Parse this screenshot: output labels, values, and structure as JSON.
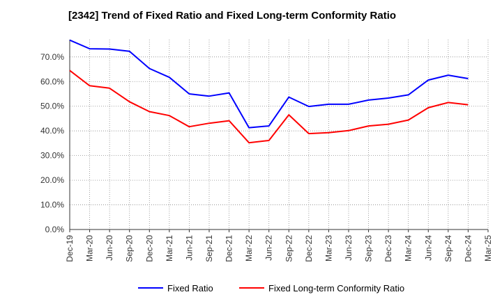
{
  "chart_data": {
    "type": "line",
    "title": "[2342]  Trend of Fixed Ratio and Fixed Long-term Conformity Ratio",
    "xlabel": "",
    "ylabel": "",
    "categories": [
      "Dec-19",
      "Mar-20",
      "Jun-20",
      "Sep-20",
      "Dec-20",
      "Mar-21",
      "Jun-21",
      "Sep-21",
      "Dec-21",
      "Mar-22",
      "Jun-22",
      "Sep-22",
      "Dec-22",
      "Mar-23",
      "Jun-23",
      "Sep-23",
      "Dec-23",
      "Mar-24",
      "Jun-24",
      "Sep-24",
      "Dec-24",
      "Mar-25"
    ],
    "ylim": [
      0,
      77
    ],
    "yticks": [
      "0.0%",
      "10.0%",
      "20.0%",
      "30.0%",
      "40.0%",
      "50.0%",
      "60.0%",
      "70.0%"
    ],
    "grid": true,
    "legend_position": "bottom",
    "series": [
      {
        "name": "Fixed Ratio",
        "color": "#0000ff",
        "values": [
          76.8,
          73.3,
          73.2,
          72.3,
          65.3,
          61.7,
          55.0,
          54.1,
          55.4,
          41.3,
          42.0,
          53.7,
          49.9,
          50.8,
          50.8,
          52.5,
          53.3,
          54.6,
          60.6,
          62.6,
          61.2,
          null
        ]
      },
      {
        "name": "Fixed Long-term Conformity Ratio",
        "color": "#ff0000",
        "values": [
          64.5,
          58.3,
          57.3,
          51.8,
          47.8,
          46.2,
          41.7,
          43.1,
          44.1,
          35.2,
          36.1,
          46.5,
          38.9,
          39.3,
          40.1,
          42.0,
          42.7,
          44.4,
          49.4,
          51.5,
          50.6,
          null
        ]
      }
    ]
  }
}
